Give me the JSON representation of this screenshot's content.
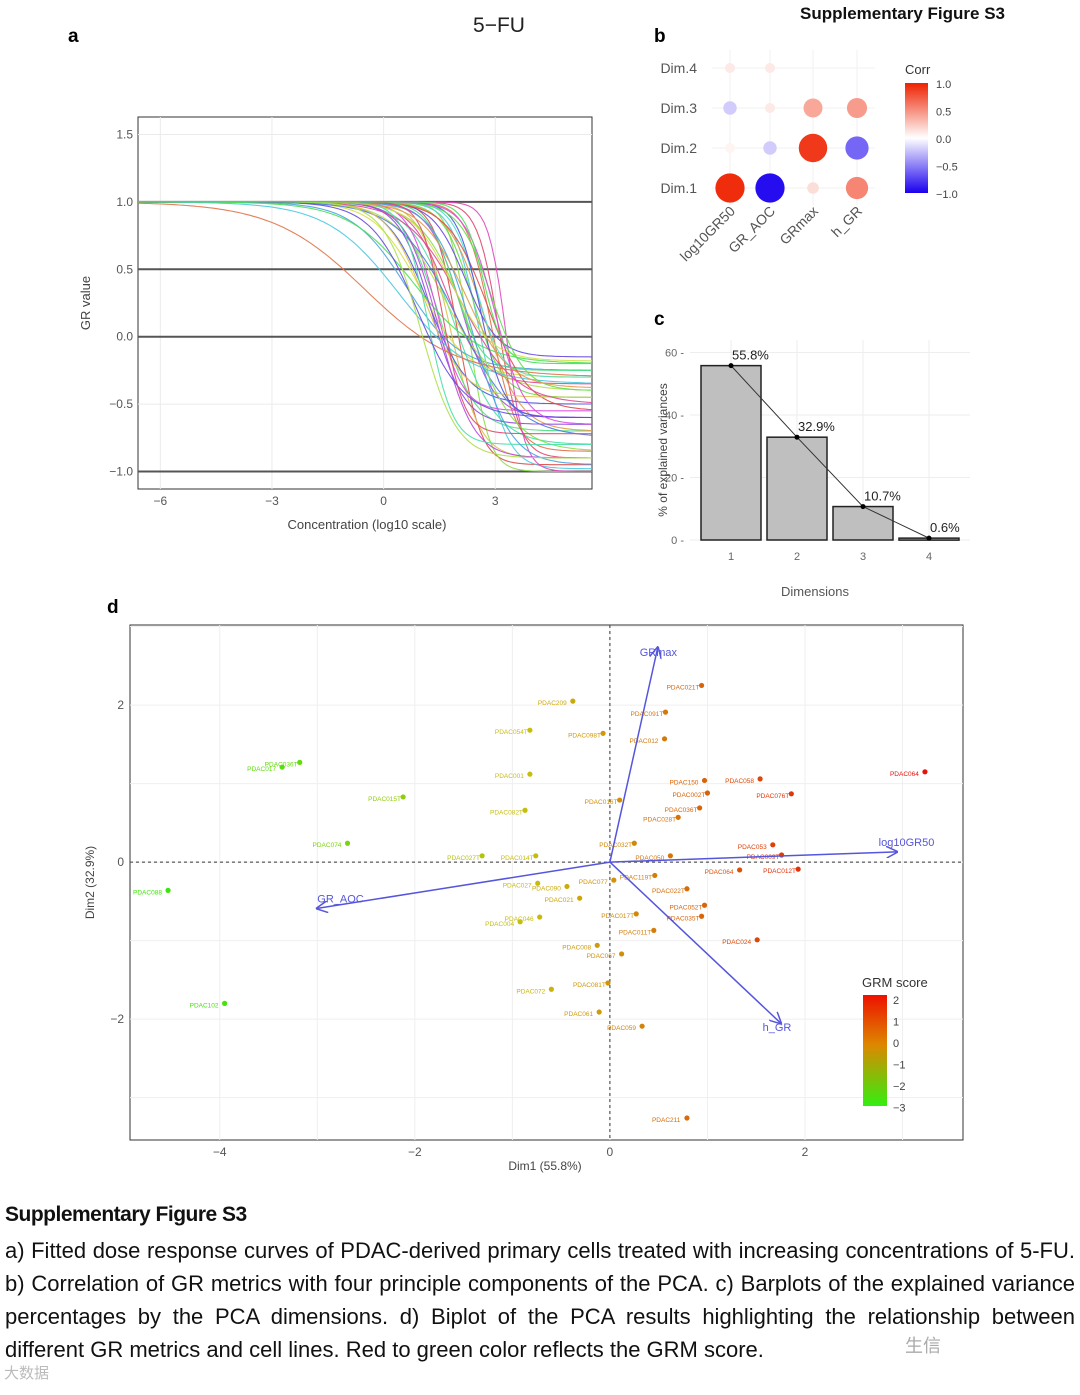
{
  "header": {
    "figure_title": "Supplementary Figure S3"
  },
  "panel_labels": {
    "a": "a",
    "b": "b",
    "c": "c",
    "d": "d"
  },
  "caption": {
    "title": "Supplementary Figure S3",
    "body": "a) Fitted dose response curves of PDAC-derived primary cells treated with increasing concentrations of 5-FU. b) Correlation of GR metrics with four principle components of the PCA. c) Barplots of the explained variance percentages by the PCA dimensions. d) Biplot of the PCA results highlighting the relationship between different GR metrics and cell lines. Red to green color reflects the GRM score."
  },
  "watermarks": {
    "left": "大数据",
    "right": "生信"
  },
  "chart_data": [
    {
      "id": "a",
      "type": "line",
      "title": "5−FU",
      "xlabel": "Concentration (log10 scale)",
      "ylabel": "GR value",
      "xlim": [
        -6.6,
        5.6
      ],
      "ylim": [
        -1.13,
        1.63
      ],
      "xticks": [
        -6,
        -3,
        0,
        3
      ],
      "xtick_labels": [
        "−6",
        "−3",
        "0",
        "3"
      ],
      "yticks": [
        1.5,
        1.0,
        0.5,
        0.0,
        -0.5,
        -1.0
      ],
      "ytick_labels": [
        "1.5",
        "1.0",
        "0.5",
        "0.0",
        "−0.5",
        "−1.0"
      ],
      "reference_lines": [
        1.0,
        0.5,
        0.0,
        -1.0
      ],
      "curve_model": "GR = GRinf + (1 - GRinf) / (1 + 10^(h*(x - log10GEC50)))",
      "curves": [
        [
          2.0,
          -0.95,
          1.4
        ],
        [
          1.8,
          -0.9,
          1.1
        ],
        [
          2.3,
          -1.0,
          1.6
        ],
        [
          1.5,
          -0.7,
          0.9
        ],
        [
          2.6,
          -0.98,
          1.2
        ],
        [
          1.2,
          -0.5,
          0.8
        ],
        [
          2.1,
          -0.6,
          1.0
        ],
        [
          1.7,
          -0.35,
          0.9
        ],
        [
          2.9,
          -0.85,
          1.3
        ],
        [
          1.0,
          -0.3,
          0.7
        ],
        [
          2.4,
          -0.45,
          1.1
        ],
        [
          1.9,
          -0.8,
          0.75
        ],
        [
          0.6,
          -0.25,
          0.6
        ],
        [
          2.2,
          -0.15,
          1.0
        ],
        [
          1.4,
          -0.55,
          1.2
        ],
        [
          3.1,
          -0.9,
          1.5
        ],
        [
          2.7,
          -0.7,
          0.9
        ],
        [
          1.6,
          -0.4,
          0.65
        ],
        [
          0.8,
          -0.2,
          0.5
        ],
        [
          2.5,
          -0.3,
          1.3
        ],
        [
          2.0,
          -0.75,
          0.55
        ],
        [
          1.3,
          -0.65,
          1.0
        ],
        [
          3.3,
          -1.0,
          1.8
        ],
        [
          2.8,
          -0.55,
          0.8
        ],
        [
          1.1,
          -0.45,
          0.85
        ],
        [
          2.3,
          -0.85,
          0.7
        ],
        [
          1.9,
          -0.25,
          1.2
        ],
        [
          0.4,
          -0.35,
          0.45
        ],
        [
          2.6,
          -0.6,
          1.4
        ],
        [
          1.5,
          -0.9,
          0.95
        ],
        [
          2.1,
          -0.5,
          0.6
        ],
        [
          -0.5,
          -0.3,
          0.35
        ],
        [
          1.8,
          -0.18,
          0.8
        ],
        [
          2.9,
          -0.4,
          1.0
        ],
        [
          1.2,
          -0.8,
          1.3
        ],
        [
          2.4,
          -0.95,
          0.85
        ],
        [
          0.9,
          -0.6,
          0.7
        ],
        [
          3.0,
          -0.65,
          1.1
        ],
        [
          1.6,
          -0.72,
          1.5
        ],
        [
          2.2,
          -0.38,
          0.75
        ],
        [
          1.0,
          -0.9,
          0.9
        ],
        [
          2.7,
          -0.2,
          1.6
        ]
      ]
    },
    {
      "id": "b",
      "type": "heatmap",
      "legend_title": "Corr",
      "legend_ticks": [
        "1.0",
        "0.5",
        "0.0",
        "−0.5",
        "−1.0"
      ],
      "rows": [
        "Dim.4",
        "Dim.3",
        "Dim.2",
        "Dim.1"
      ],
      "columns": [
        "log10GR50",
        "GR_AOC",
        "GRmax",
        "h_GR"
      ],
      "values": [
        [
          0.1,
          0.1,
          0.0,
          0.0
        ],
        [
          -0.2,
          0.1,
          0.4,
          0.45
        ],
        [
          0.05,
          -0.2,
          0.9,
          -0.6
        ],
        [
          0.95,
          -0.95,
          0.15,
          0.55
        ]
      ],
      "colors": {
        "high": "#ee2200",
        "mid": "#ffffff",
        "low": "#1a00ee"
      }
    },
    {
      "id": "c",
      "type": "bar",
      "categories": [
        "1",
        "2",
        "3",
        "4"
      ],
      "values": [
        55.8,
        32.9,
        10.7,
        0.6
      ],
      "labels": [
        "55.8%",
        "32.9%",
        "10.7%",
        "0.6%"
      ],
      "xlabel": "Dimensions",
      "ylabel": "% of explained variances",
      "ylim": [
        0,
        64
      ],
      "yticks": [
        0,
        20,
        40,
        60
      ],
      "ytick_labels": [
        "0",
        "20",
        "40",
        "60"
      ],
      "line_overlay": true
    },
    {
      "id": "d",
      "type": "scatter",
      "xlabel": "Dim1 (55.8%)",
      "ylabel": "Dim2 (32.9%)",
      "xlim": [
        -4.92,
        3.62
      ],
      "ylim": [
        -3.54,
        3.02
      ],
      "xticks": [
        -4,
        -2,
        0,
        2
      ],
      "xtick_labels": [
        "−4",
        "−2",
        "0",
        "2"
      ],
      "yticks": [
        2,
        0,
        -2
      ],
      "ytick_labels": [
        "2",
        "0",
        "−2"
      ],
      "legend_title": "GRM score",
      "legend_ticks": [
        "2",
        "1",
        "0",
        "−1",
        "−2",
        "−3"
      ],
      "legend_placement": "bottom-right",
      "points": [
        {
          "label": "PDAC088",
          "x": -4.53,
          "y": -0.36
        },
        {
          "label": "PDAC102",
          "x": -3.95,
          "y": -1.8
        },
        {
          "label": "PDAC036T",
          "x": -3.18,
          "y": 1.27
        },
        {
          "label": "PDAC017",
          "x": -3.36,
          "y": 1.21
        },
        {
          "label": "PDAC015T",
          "x": -2.12,
          "y": 0.83
        },
        {
          "label": "PDAC074",
          "x": -2.69,
          "y": 0.24
        },
        {
          "label": "PDAC027T",
          "x": -1.31,
          "y": 0.08
        },
        {
          "label": "PDAC209",
          "x": -0.38,
          "y": 2.05
        },
        {
          "label": "PDAC054T",
          "x": -0.82,
          "y": 1.68
        },
        {
          "label": "PDAC098T",
          "x": -0.07,
          "y": 1.64
        },
        {
          "label": "PDAC021T",
          "x": 0.94,
          "y": 2.25
        },
        {
          "label": "PDAC091T",
          "x": 0.57,
          "y": 1.91
        },
        {
          "label": "PDAC012",
          "x": 0.56,
          "y": 1.57
        },
        {
          "label": "PDAC001",
          "x": -0.82,
          "y": 1.12
        },
        {
          "label": "PDAC082T",
          "x": -0.87,
          "y": 0.66
        },
        {
          "label": "PDAC016T",
          "x": 0.1,
          "y": 0.79
        },
        {
          "label": "PDAC150",
          "x": 0.97,
          "y": 1.04
        },
        {
          "label": "PDAC058",
          "x": 1.54,
          "y": 1.06
        },
        {
          "label": "PDAC076T",
          "x": 1.86,
          "y": 0.87
        },
        {
          "label": "PDAC002T",
          "x": 1.0,
          "y": 0.88
        },
        {
          "label": "PDAC036T",
          "x": 0.92,
          "y": 0.69
        },
        {
          "label": "PDAC028T",
          "x": 0.7,
          "y": 0.57
        },
        {
          "label": "PDAC053",
          "x": 1.67,
          "y": 0.22
        },
        {
          "label": "PDAC009T",
          "x": 1.76,
          "y": 0.09
        },
        {
          "label": "PDAC012T",
          "x": 1.93,
          "y": -0.09
        },
        {
          "label": "PDAC064",
          "x": 1.33,
          "y": -0.1
        },
        {
          "label": "PDAC032T",
          "x": 0.25,
          "y": 0.24
        },
        {
          "label": "PDAC050",
          "x": 0.62,
          "y": 0.08
        },
        {
          "label": "PDAC119T",
          "x": 0.46,
          "y": -0.17
        },
        {
          "label": "PDAC022T",
          "x": 0.79,
          "y": -0.34
        },
        {
          "label": "PDAC052T",
          "x": 0.97,
          "y": -0.55
        },
        {
          "label": "PDAC035T",
          "x": 0.94,
          "y": -0.69
        },
        {
          "label": "PDAC024",
          "x": 1.51,
          "y": -0.99
        },
        {
          "label": "PDAC077",
          "x": 0.04,
          "y": -0.23
        },
        {
          "label": "PDAC011T",
          "x": 0.45,
          "y": -0.87
        },
        {
          "label": "PDAC017T",
          "x": 0.27,
          "y": -0.66
        },
        {
          "label": "PDAC014T",
          "x": -0.76,
          "y": 0.08
        },
        {
          "label": "PDAC027",
          "x": -0.74,
          "y": -0.27
        },
        {
          "label": "PDAC090",
          "x": -0.44,
          "y": -0.31
        },
        {
          "label": "PDAC021",
          "x": -0.31,
          "y": -0.46
        },
        {
          "label": "PDAC046",
          "x": -0.72,
          "y": -0.7
        },
        {
          "label": "PDAC004",
          "x": -0.92,
          "y": -0.76
        },
        {
          "label": "PDAC008",
          "x": -0.13,
          "y": -1.06
        },
        {
          "label": "PDAC067",
          "x": 0.12,
          "y": -1.17
        },
        {
          "label": "PDAC072",
          "x": -0.6,
          "y": -1.62
        },
        {
          "label": "PDAC081T",
          "x": -0.02,
          "y": -1.54
        },
        {
          "label": "PDAC061",
          "x": -0.11,
          "y": -1.91
        },
        {
          "label": "PDAC059",
          "x": 0.33,
          "y": -2.09
        },
        {
          "label": "PDAC211",
          "x": 0.79,
          "y": -3.26
        },
        {
          "label": "PDAC064",
          "x": 3.23,
          "y": 1.15
        }
      ],
      "arrows": [
        {
          "label": "GRmax",
          "x": 0.49,
          "y": 2.73
        },
        {
          "label": "log10GR50",
          "x": 2.94,
          "y": 0.13
        },
        {
          "label": "GR_AOC",
          "x": -3.0,
          "y": -0.59
        },
        {
          "label": "h_GR",
          "x": 1.75,
          "y": -2.05
        }
      ],
      "arrow_color": "#5555dd"
    }
  ]
}
